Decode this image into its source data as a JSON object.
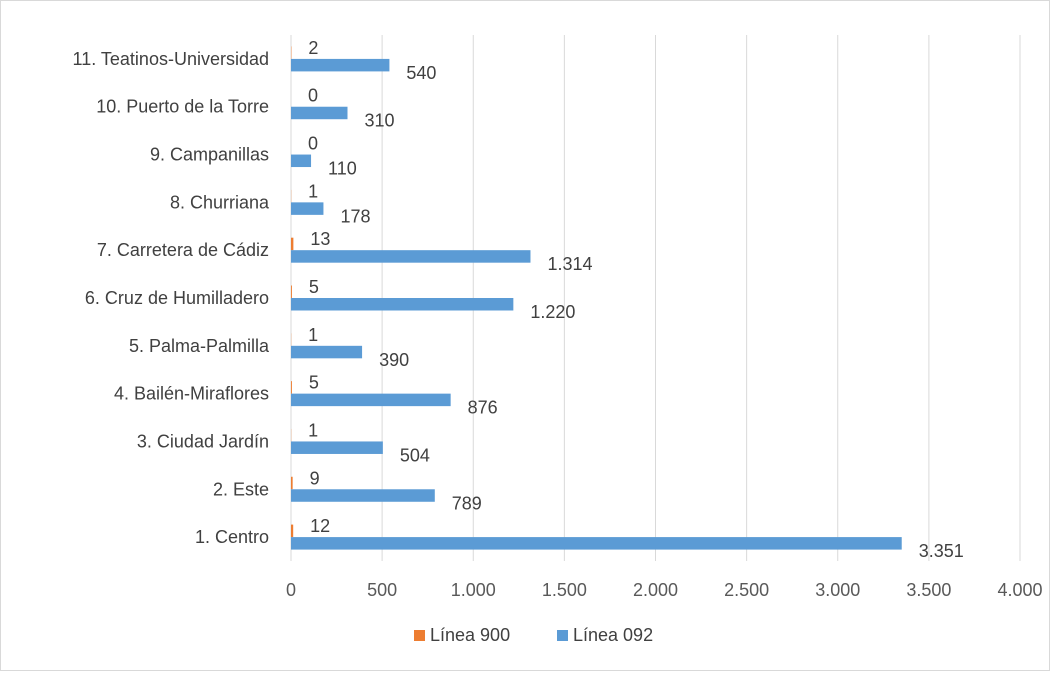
{
  "chart_data": {
    "type": "bar",
    "orientation": "horizontal",
    "categories": [
      "1. Centro",
      "2. Este",
      "3. Ciudad Jardín",
      "4. Bailén-Miraflores",
      "5. Palma-Palmilla",
      "6. Cruz de Humilladero",
      "7. Carretera de Cádiz",
      "8. Churriana",
      "9. Campanillas",
      "10. Puerto de la Torre",
      "11. Teatinos-Universidad"
    ],
    "series": [
      {
        "name": "Línea 900",
        "color": "#ed7d31",
        "values": [
          12,
          9,
          1,
          5,
          1,
          5,
          13,
          1,
          0,
          0,
          2
        ],
        "labels": [
          "12",
          "9",
          "1",
          "5",
          "1",
          "5",
          "13",
          "1",
          "0",
          "0",
          "2"
        ]
      },
      {
        "name": "Línea 092",
        "color": "#5b9bd5",
        "values": [
          3351,
          789,
          504,
          876,
          390,
          1220,
          1314,
          178,
          110,
          310,
          540
        ],
        "labels": [
          "3.351",
          "789",
          "504",
          "876",
          "390",
          "1.220",
          "1.314",
          "178",
          "110",
          "310",
          "540"
        ]
      }
    ],
    "xlim": [
      0,
      4000
    ],
    "ticks": [
      0,
      500,
      1000,
      1500,
      2000,
      2500,
      3000,
      3500,
      4000
    ],
    "tick_labels": [
      "0",
      "500",
      "1.000",
      "1.500",
      "2.000",
      "2.500",
      "3.000",
      "3.500",
      "4.000"
    ],
    "grid": true,
    "legend_position": "bottom",
    "title": "",
    "xlabel": "",
    "ylabel": ""
  }
}
